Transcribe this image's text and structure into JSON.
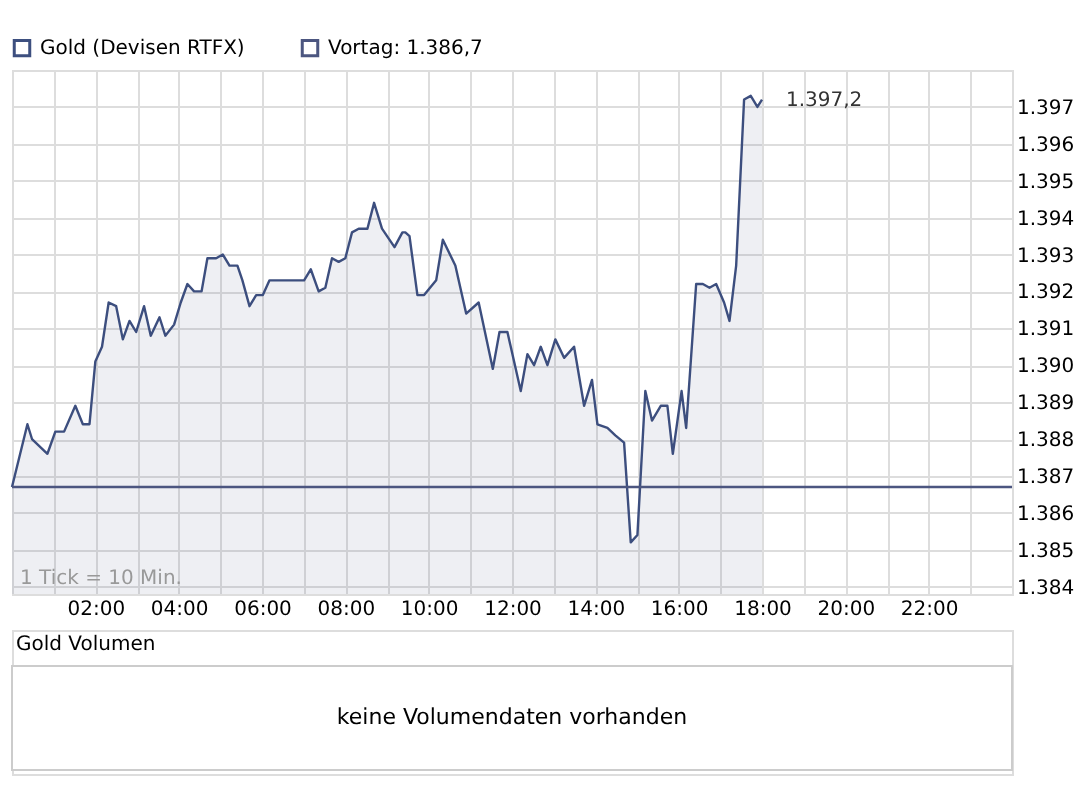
{
  "chart_data": [
    {
      "type": "area",
      "x": [
        0,
        0.37,
        0.48,
        0.85,
        1.04,
        1.25,
        1.52,
        1.7,
        1.86,
        2.0,
        2.16,
        2.32,
        2.5,
        2.66,
        2.82,
        2.98,
        3.17,
        3.33,
        3.54,
        3.68,
        3.89,
        4.05,
        4.21,
        4.37,
        4.55,
        4.69,
        4.9,
        5.06,
        5.22,
        5.41,
        5.53,
        5.7,
        5.86,
        6.02,
        6.18,
        7.01,
        7.17,
        7.36,
        7.52,
        7.68,
        7.84,
        8.0,
        8.16,
        8.32,
        8.53,
        8.69,
        8.88,
        9.18,
        9.37,
        9.44,
        9.54,
        9.73,
        9.89,
        10.18,
        10.34,
        10.64,
        10.9,
        11.2,
        11.54,
        11.7,
        11.89,
        12.21,
        12.37,
        12.53,
        12.69,
        12.85,
        13.04,
        13.25,
        13.49,
        13.73,
        13.92,
        14.05,
        14.29,
        14.48,
        14.69,
        14.85,
        15.01,
        15.2,
        15.36,
        15.57,
        15.73,
        15.86,
        16.07,
        16.18,
        16.42,
        16.58,
        16.74,
        16.9,
        17.09,
        17.22,
        17.38,
        17.57,
        17.73,
        17.89,
        18.0
      ],
      "series": [
        {
          "name": "Gold (Devisen RTFX)",
          "color": "#3d4f7f",
          "values": [
            1386.7,
            1388.4,
            1388.0,
            1387.6,
            1388.2,
            1388.2,
            1388.9,
            1388.4,
            1388.4,
            1390.1,
            1390.5,
            1391.7,
            1391.6,
            1390.7,
            1391.2,
            1390.9,
            1391.6,
            1390.8,
            1391.3,
            1390.8,
            1391.1,
            1391.7,
            1392.2,
            1392.0,
            1392.0,
            1392.9,
            1392.9,
            1393.0,
            1392.7,
            1392.7,
            1392.3,
            1391.6,
            1391.9,
            1391.9,
            1392.3,
            1392.3,
            1392.6,
            1392.0,
            1392.1,
            1392.9,
            1392.8,
            1392.9,
            1393.6,
            1393.7,
            1393.7,
            1394.4,
            1393.7,
            1393.2,
            1393.6,
            1393.6,
            1393.5,
            1391.9,
            1391.9,
            1392.3,
            1393.4,
            1392.7,
            1391.4,
            1391.7,
            1389.9,
            1390.9,
            1390.9,
            1389.3,
            1390.3,
            1390.0,
            1390.5,
            1390.0,
            1390.7,
            1390.2,
            1390.5,
            1388.9,
            1389.6,
            1388.4,
            1388.3,
            1388.1,
            1387.9,
            1385.2,
            1385.4,
            1389.3,
            1388.5,
            1388.9,
            1388.9,
            1387.6,
            1389.3,
            1388.3,
            1392.2,
            1392.2,
            1392.1,
            1392.2,
            1391.7,
            1391.2,
            1392.7,
            1397.2,
            1397.3,
            1397.0,
            1397.2
          ]
        }
      ],
      "xlim": [
        0,
        24
      ],
      "xticks": [
        {
          "value": 1,
          "label": null
        },
        {
          "value": 2,
          "label": "02:00"
        },
        {
          "value": 3,
          "label": null
        },
        {
          "value": 4,
          "label": "04:00"
        },
        {
          "value": 5,
          "label": null
        },
        {
          "value": 6,
          "label": "06:00"
        },
        {
          "value": 7,
          "label": null
        },
        {
          "value": 8,
          "label": "08:00"
        },
        {
          "value": 9,
          "label": null
        },
        {
          "value": 10,
          "label": "10:00"
        },
        {
          "value": 11,
          "label": null
        },
        {
          "value": 12,
          "label": "12:00"
        },
        {
          "value": 13,
          "label": null
        },
        {
          "value": 14,
          "label": "14:00"
        },
        {
          "value": 15,
          "label": null
        },
        {
          "value": 16,
          "label": "16:00"
        },
        {
          "value": 17,
          "label": null
        },
        {
          "value": 18,
          "label": "18:00"
        },
        {
          "value": 19,
          "label": null
        },
        {
          "value": 20,
          "label": "20:00"
        },
        {
          "value": 21,
          "label": null
        },
        {
          "value": 22,
          "label": "22:00"
        },
        {
          "value": 23,
          "label": null
        }
      ],
      "ylim": [
        1383.8,
        1398.0
      ],
      "yticks": [
        {
          "value": 1384,
          "label": "1.384"
        },
        {
          "value": 1385,
          "label": "1.385"
        },
        {
          "value": 1386,
          "label": "1.386"
        },
        {
          "value": 1387,
          "label": "1.387"
        },
        {
          "value": 1388,
          "label": "1.388"
        },
        {
          "value": 1389,
          "label": "1.389"
        },
        {
          "value": 1390,
          "label": "1.390"
        },
        {
          "value": 1391,
          "label": "1.391"
        },
        {
          "value": 1392,
          "label": "1.392"
        },
        {
          "value": 1393,
          "label": "1.393"
        },
        {
          "value": 1394,
          "label": "1.394"
        },
        {
          "value": 1395,
          "label": "1.395"
        },
        {
          "value": 1396,
          "label": "1.396"
        },
        {
          "value": 1397,
          "label": "1.397"
        }
      ],
      "ref_lines": [
        {
          "axis": "y",
          "value": 1386.7,
          "label": "Vortag: 1.386,7",
          "color": "#4c5680"
        }
      ],
      "annotations": [
        "1 Tick = 10 Min.",
        {
          "text": "1.397,2",
          "x": 18,
          "y": 1397.2
        },
        "Gold Volumen",
        "keine Volumendaten vorhanden"
      ],
      "grid": true,
      "legend": "top left"
    }
  ]
}
